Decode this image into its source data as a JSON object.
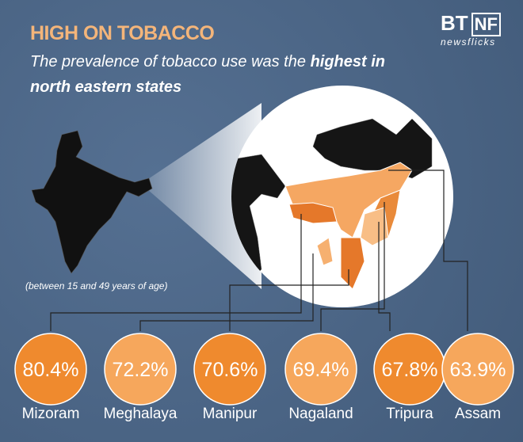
{
  "logo": {
    "left": "BT",
    "right": "NF",
    "tagline": "newsflicks"
  },
  "chart_data": {
    "type": "infographic",
    "title": "HIGH ON TOBACCO",
    "subtitle": [
      "The prevalence of tobacco use was the",
      "highest in",
      "north eastern states"
    ],
    "note": "(between 15 and 49 years of age)",
    "categories": [
      "Mizoram",
      "Meghalaya",
      "Manipur",
      "Nagaland",
      "Tripura",
      "Assam"
    ],
    "values": [
      80.4,
      72.2,
      70.6,
      69.4,
      67.8,
      63.9
    ],
    "value_labels": [
      "80.4%",
      "72.2%",
      "70.6%",
      "69.4%",
      "67.8%",
      "63.9%"
    ],
    "colors": [
      "#ef8a2e",
      "#f6a75c",
      "#ef8a2e",
      "#f6a75c",
      "#ef8a2e",
      "#f6a75c"
    ]
  }
}
